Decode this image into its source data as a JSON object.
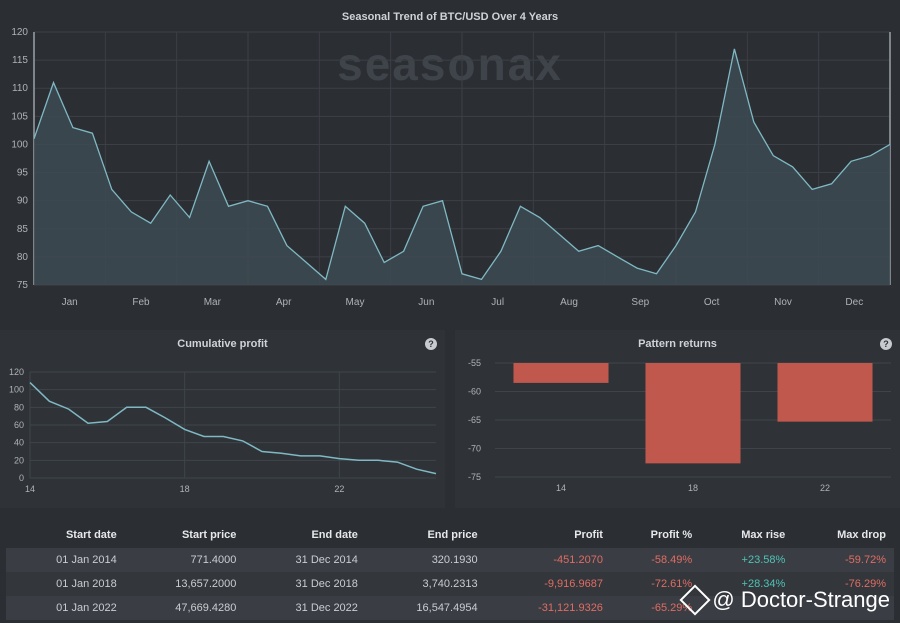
{
  "main_chart": {
    "title": "Seasonal Trend of BTC/USD Over 4 Years",
    "watermark": "seasonax",
    "y_ticks": [
      75,
      80,
      85,
      90,
      95,
      100,
      105,
      110,
      115,
      120
    ],
    "months": [
      "Jan",
      "Feb",
      "Mar",
      "Apr",
      "May",
      "Jun",
      "Jul",
      "Aug",
      "Sep",
      "Oct",
      "Nov",
      "Dec"
    ],
    "colors": {
      "line": "#7fb9c4",
      "fill": "#3d4a52",
      "grid": "#3c4046"
    }
  },
  "chart_data": [
    {
      "type": "area",
      "title": "Seasonal Trend of BTC/USD Over 4 Years",
      "xlabel": "",
      "ylabel": "",
      "ylim": [
        75,
        120
      ],
      "x": [
        "Jan",
        "Jan",
        "Jan",
        "Jan",
        "Jan",
        "Feb",
        "Feb",
        "Feb",
        "Feb",
        "Mar",
        "Mar",
        "Mar",
        "Mar",
        "Apr",
        "Apr",
        "Apr",
        "Apr",
        "May",
        "May",
        "May",
        "May",
        "Jun",
        "Jun",
        "Jun",
        "Jul",
        "Jul",
        "Jul",
        "Aug",
        "Aug",
        "Aug",
        "Sep",
        "Sep",
        "Sep",
        "Oct",
        "Oct",
        "Oct",
        "Oct",
        "Nov",
        "Nov",
        "Nov",
        "Nov",
        "Dec",
        "Dec",
        "Dec",
        "Dec"
      ],
      "values": [
        101,
        111,
        103,
        102,
        92,
        88,
        86,
        91,
        87,
        97,
        89,
        90,
        89,
        82,
        79,
        76,
        89,
        86,
        79,
        81,
        89,
        90,
        77,
        76,
        81,
        89,
        87,
        84,
        81,
        82,
        80,
        78,
        77,
        82,
        88,
        100,
        117,
        104,
        98,
        96,
        92,
        93,
        97,
        98,
        100
      ]
    },
    {
      "type": "line",
      "title": "Cumulative profit",
      "xlabel": "",
      "ylabel": "",
      "ylim": [
        0,
        120
      ],
      "x": [
        14,
        14.5,
        15,
        15.5,
        16,
        16.5,
        17,
        17.5,
        18,
        18.5,
        19,
        19.5,
        20,
        20.5,
        21,
        21.5,
        22,
        22.5,
        23,
        23.5,
        24,
        24.5
      ],
      "values": [
        108,
        87,
        78,
        62,
        64,
        80,
        80,
        68,
        55,
        47,
        47,
        42,
        30,
        28,
        25,
        25,
        22,
        20,
        20,
        18,
        10,
        5
      ],
      "x_ticks": [
        14,
        18,
        22
      ]
    },
    {
      "type": "bar",
      "title": "Pattern returns",
      "xlabel": "",
      "ylabel": "",
      "ylim": [
        -75,
        -55
      ],
      "categories": [
        "14",
        "18",
        "22"
      ],
      "values": [
        -58.49,
        -72.61,
        -65.29
      ],
      "y_ticks": [
        -55,
        -60,
        -65,
        -70,
        -75
      ],
      "colors": {
        "bar": "#c0584e"
      }
    }
  ],
  "cumulative_profit": {
    "title": "Cumulative profit",
    "help": "?",
    "y_ticks": [
      0,
      20,
      40,
      60,
      80,
      100,
      120
    ],
    "x_ticks": [
      "14",
      "18",
      "22"
    ]
  },
  "pattern_returns": {
    "title": "Pattern returns",
    "help": "?",
    "y_ticks": [
      "-55",
      "-60",
      "-65",
      "-70",
      "-75"
    ],
    "x_ticks": [
      "14",
      "18",
      "22"
    ]
  },
  "table": {
    "headers": [
      "Start date",
      "Start price",
      "End date",
      "End price",
      "Profit",
      "Profit %",
      "Max rise",
      "Max drop"
    ],
    "rows": [
      [
        "01 Jan 2014",
        "771.4000",
        "31 Dec 2014",
        "320.1930",
        "-451.2070",
        "-58.49%",
        "+23.58%",
        "-59.72%"
      ],
      [
        "01 Jan 2018",
        "13,657.2000",
        "31 Dec 2018",
        "3,740.2313",
        "-9,916.9687",
        "-72.61%",
        "+28.34%",
        "-76.29%"
      ],
      [
        "01 Jan 2022",
        "47,669.4280",
        "31 Dec 2022",
        "16,547.4954",
        "-31,121.9326",
        "-65.29%",
        "",
        ""
      ]
    ]
  },
  "credit": "@ Doctor-Strange"
}
